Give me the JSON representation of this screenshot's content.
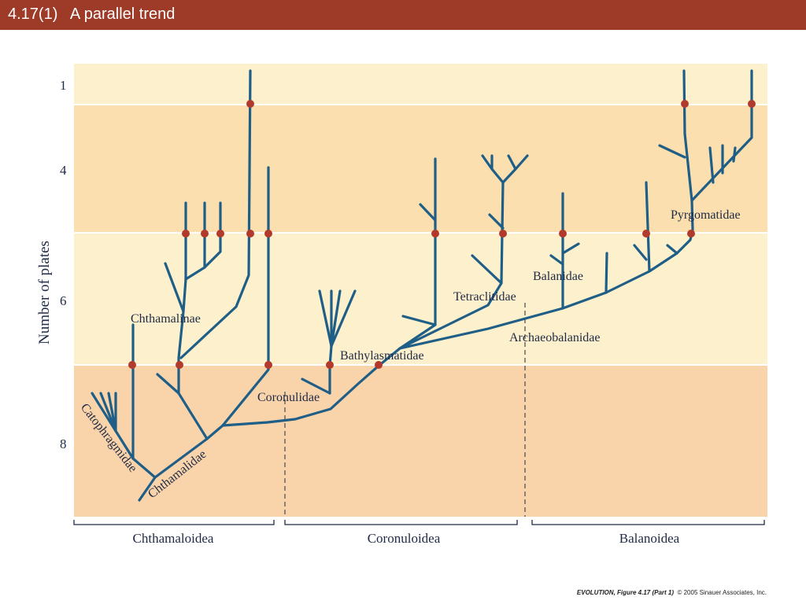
{
  "slide": {
    "title": "4.17(1)   A parallel trend"
  },
  "axis": {
    "label": "Number of plates",
    "ticks": [
      {
        "value": 1,
        "label": "1"
      },
      {
        "value": 4,
        "label": "4"
      },
      {
        "value": 6,
        "label": "6"
      },
      {
        "value": 8,
        "label": "8"
      }
    ]
  },
  "taxa": {
    "catophragmidae": "Catophragmidae",
    "chthamalidae": "Chthamalidae",
    "chthamalinae": "Chthamalinae",
    "coronulidae": "Coronulidae",
    "bathylasmatidae": "Bathylasmatidae",
    "tetraclitidae": "Tetraclitidae",
    "balanidae": "Balanidae",
    "archaeobalanidae": "Archaeobalanidae",
    "pygomatidae": "Pyrgomatidae"
  },
  "superfamilies": [
    "Chthamaloidea",
    "Coronuloidea",
    "Balanoidea"
  ],
  "credit": {
    "book": "EVOLUTION",
    "figure": ", Figure 4.17 (Part 1)",
    "copyright": "© 2005 Sinauer Associates, Inc."
  },
  "colors": {
    "title_bar": "#9e3a28",
    "band_light": "#fdf0cd",
    "band_mid": "#fbdfae",
    "band_dark": "#f9d4ab",
    "branch": "#1f5e86",
    "node": "#b23a2c"
  }
}
